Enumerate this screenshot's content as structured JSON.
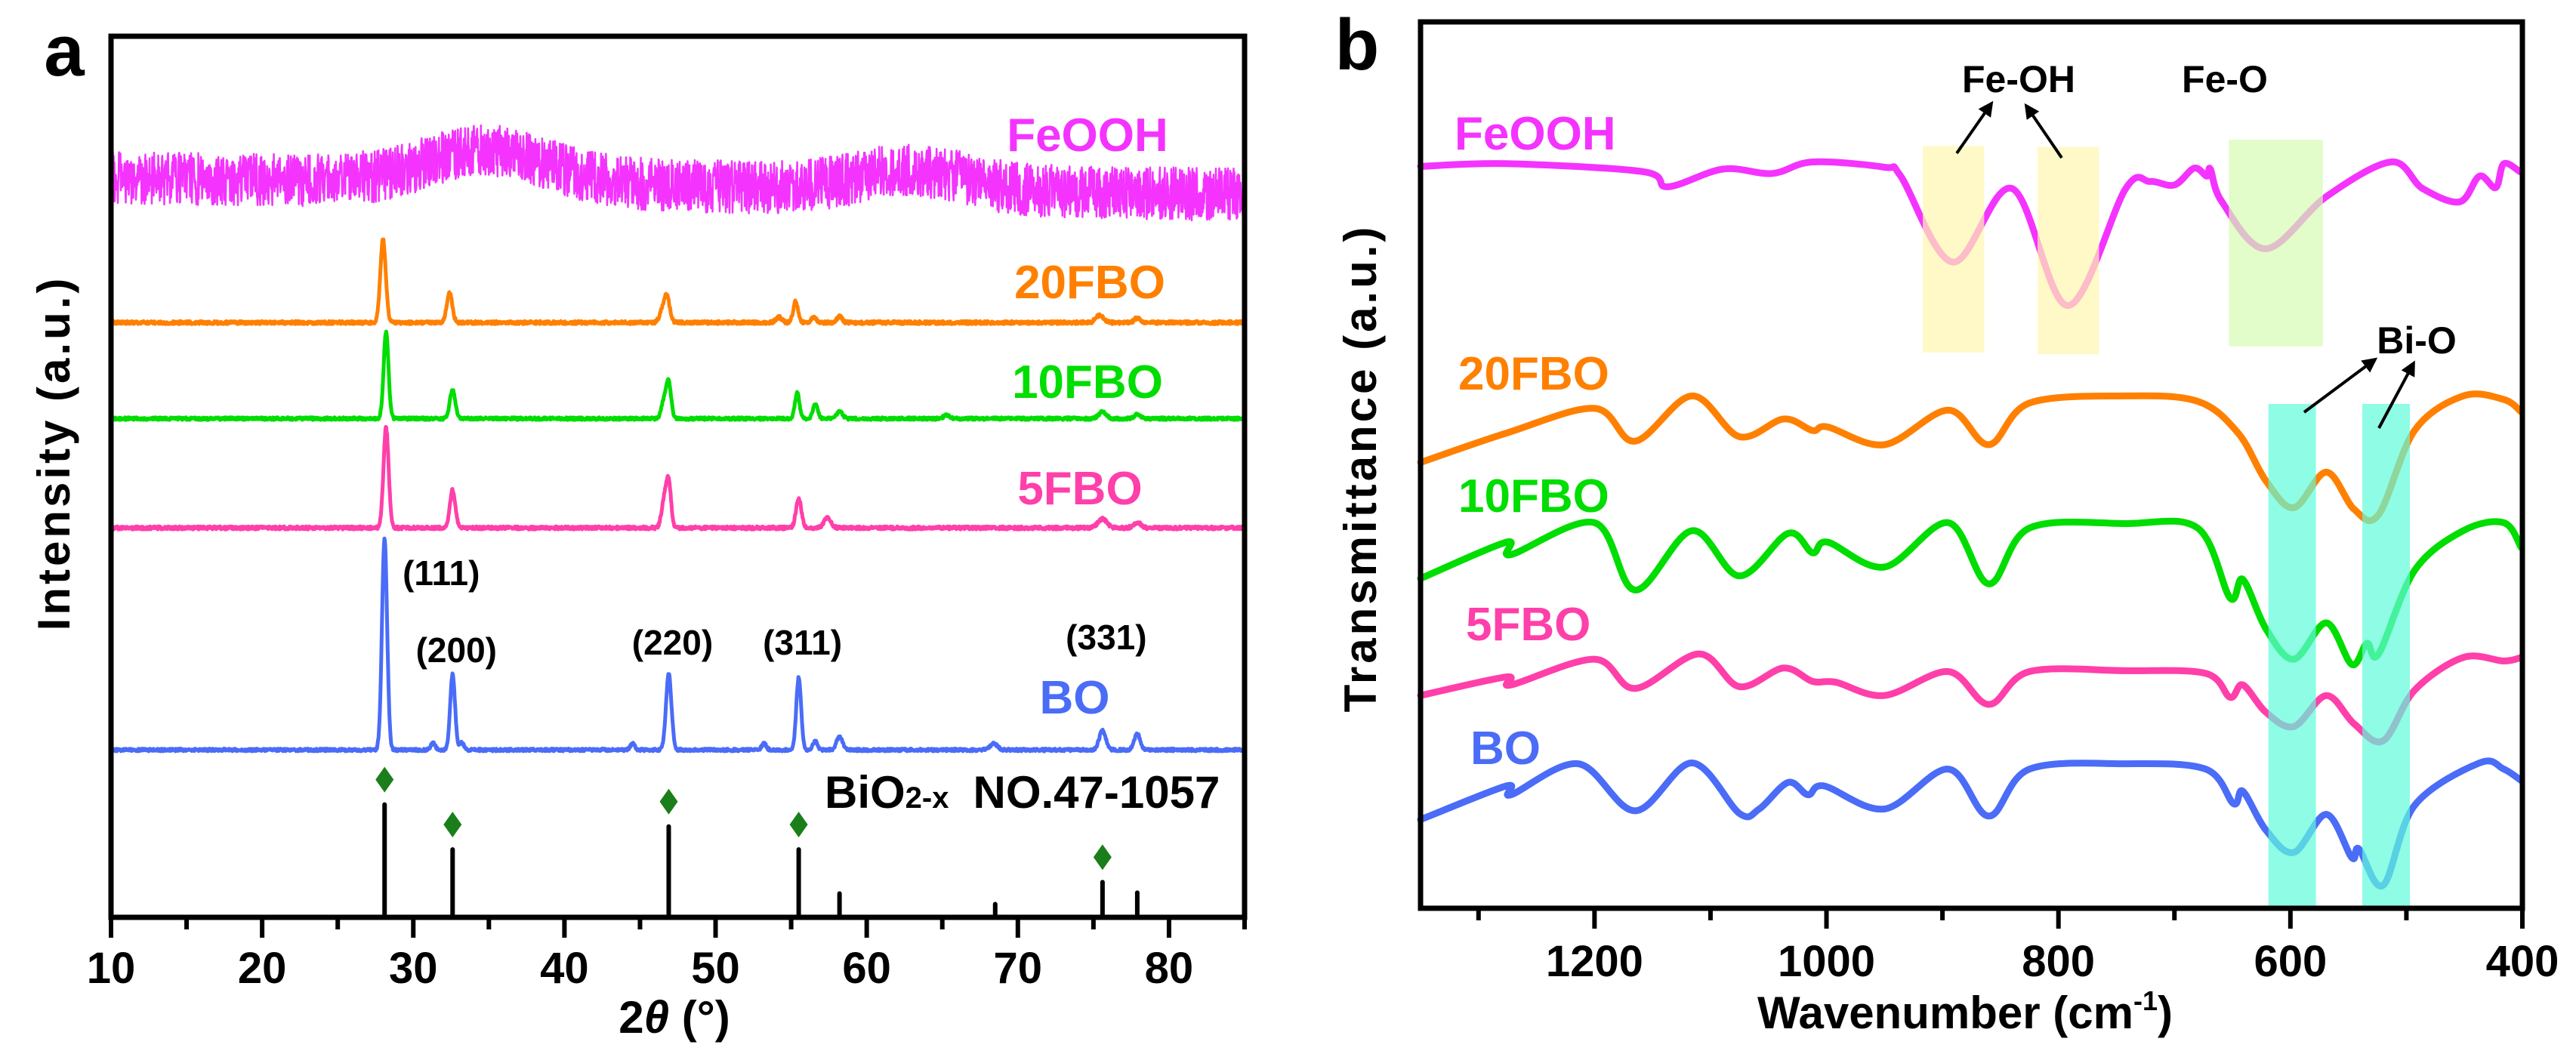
{
  "chart_data": [
    {
      "panel": "a",
      "type": "line",
      "title": "",
      "xlabel": {
        "prefix": "2",
        "symbol": "θ",
        "suffix": " (°)"
      },
      "ylabel": "Intensity (a.u.)",
      "xlim": [
        10,
        85
      ],
      "ylim": [
        0,
        100
      ],
      "xticks": [
        "10",
        "20",
        "30",
        "40",
        "50",
        "60",
        "70",
        "80"
      ],
      "xtick_values": [
        10,
        20,
        30,
        40,
        50,
        60,
        70,
        80
      ],
      "minor_xtick_values": [
        15,
        25,
        35,
        45,
        55,
        65,
        75,
        85
      ],
      "grid": false,
      "series": [
        {
          "name": "FeOOH",
          "color": "#f433ff",
          "baseline": [
            84.0,
            82.0
          ],
          "noise": 3.0,
          "seed": 7,
          "peaks": [
            [
              35,
              3.7,
              4.0
            ],
            [
              63,
              2.2,
              3.5
            ]
          ]
        },
        {
          "name": "20FBO",
          "color": "#ff8000",
          "baseline": [
            67.5,
            67.5
          ],
          "noise": 0.35,
          "seed": 11,
          "peaks": [
            [
              28.0,
              9.4,
              0.18
            ],
            [
              32.4,
              3.4,
              0.18
            ],
            [
              46.5,
              1.4,
              0.2
            ],
            [
              46.8,
              2.6,
              0.18
            ],
            [
              54.2,
              0.6,
              0.2
            ],
            [
              55.3,
              2.4,
              0.16
            ],
            [
              56.5,
              0.6,
              0.18
            ],
            [
              58.2,
              0.7,
              0.18
            ],
            [
              75.4,
              0.8,
              0.25
            ],
            [
              77.9,
              0.5,
              0.2
            ]
          ]
        },
        {
          "name": "10FBO",
          "color": "#00dd00",
          "baseline": [
            56.6,
            56.6
          ],
          "noise": 0.3,
          "seed": 13,
          "peaks": [
            [
              28.2,
              9.8,
              0.16
            ],
            [
              32.6,
              3.3,
              0.18
            ],
            [
              46.6,
              2.0,
              0.18
            ],
            [
              46.9,
              3.9,
              0.16
            ],
            [
              55.4,
              2.9,
              0.15
            ],
            [
              56.6,
              1.6,
              0.16
            ],
            [
              58.2,
              0.8,
              0.2
            ],
            [
              65.3,
              0.4,
              0.2
            ],
            [
              75.6,
              0.8,
              0.25
            ],
            [
              77.9,
              0.5,
              0.2
            ]
          ]
        },
        {
          "name": "5FBO",
          "color": "#ff3faa",
          "baseline": [
            44.2,
            44.2
          ],
          "noise": 0.35,
          "seed": 17,
          "peaks": [
            [
              28.2,
              11.4,
              0.17
            ],
            [
              32.6,
              4.3,
              0.18
            ],
            [
              46.6,
              3.0,
              0.18
            ],
            [
              46.9,
              4.9,
              0.16
            ],
            [
              55.5,
              3.3,
              0.18
            ],
            [
              57.4,
              1.2,
              0.22
            ],
            [
              75.6,
              1.0,
              0.3
            ],
            [
              77.9,
              0.6,
              0.25
            ]
          ]
        },
        {
          "name": "BO",
          "color": "#4a6cf7",
          "baseline": [
            19.0,
            19.0
          ],
          "noise": 0.3,
          "seed": 19,
          "peaks": [
            [
              28.1,
              24.0,
              0.17
            ],
            [
              31.3,
              0.8,
              0.15
            ],
            [
              32.6,
              8.6,
              0.16
            ],
            [
              33.2,
              0.8,
              0.15
            ],
            [
              44.5,
              0.7,
              0.15
            ],
            [
              46.9,
              8.6,
              0.18
            ],
            [
              53.2,
              0.7,
              0.15
            ],
            [
              55.5,
              8.2,
              0.16
            ],
            [
              56.6,
              1.0,
              0.15
            ],
            [
              58.2,
              1.5,
              0.2
            ],
            [
              68.4,
              0.7,
              0.25
            ],
            [
              75.6,
              2.2,
              0.22
            ],
            [
              77.9,
              1.8,
              0.2
            ]
          ]
        }
      ],
      "hkl_labels": [
        {
          "label": "(111)",
          "two_theta": 28.1
        },
        {
          "label": "(200)",
          "two_theta": 32.6
        },
        {
          "label": "(220)",
          "two_theta": 46.9
        },
        {
          "label": "(311)",
          "two_theta": 55.5
        },
        {
          "label": "(331)",
          "two_theta": 75.6
        }
      ],
      "reference": {
        "compound": "BiO",
        "subscript": "2-x",
        "card": "NO.47-1057",
        "line_color": "#000000",
        "marker_color": "#1a7f1a",
        "lines": [
          [
            28.1,
            12.8
          ],
          [
            32.6,
            7.7
          ],
          [
            46.9,
            10.3
          ],
          [
            55.5,
            7.7
          ],
          [
            58.2,
            2.7
          ],
          [
            68.5,
            1.5
          ],
          [
            75.6,
            4.0
          ],
          [
            77.9,
            2.8
          ]
        ],
        "marked": [
          28.1,
          32.6,
          46.9,
          55.5,
          75.6
        ]
      }
    },
    {
      "panel": "b",
      "type": "line",
      "title": "",
      "xlabel": {
        "text": "Wavenumber (cm",
        "superscript": "-1",
        "suffix": ")"
      },
      "ylabel": "Transmittance (a.u.)",
      "xlim": [
        1350,
        400
      ],
      "ylim": [
        0,
        100
      ],
      "xticks": [
        "1200",
        "1000",
        "800",
        "600",
        "400"
      ],
      "xtick_values": [
        1200,
        1000,
        800,
        600,
        400
      ],
      "minor_xtick_values": [
        1300,
        1100,
        900,
        700,
        500
      ],
      "grid": false,
      "series": [
        {
          "name": "FeOOH",
          "color": "#f433ff",
          "points": [
            [
              1350,
              83.7
            ],
            [
              1276,
              84.0
            ],
            [
              1158,
              83.1
            ],
            [
              1137,
              81.4
            ],
            [
              1089,
              83.4
            ],
            [
              1047,
              82.9
            ],
            [
              1012,
              84.2
            ],
            [
              950,
              83.6
            ],
            [
              936,
              82.6
            ],
            [
              891,
              72.9
            ],
            [
              840,
              81.2
            ],
            [
              792,
              68.0
            ],
            [
              742,
              81.2
            ],
            [
              721,
              82.0
            ],
            [
              700,
              81.6
            ],
            [
              683,
              83.5
            ],
            [
              672,
              82.6
            ],
            [
              669,
              83.4
            ],
            [
              659,
              79.7
            ],
            [
              621,
              74.4
            ],
            [
              569,
              80.3
            ],
            [
              513,
              84.2
            ],
            [
              486,
              81.2
            ],
            [
              454,
              79.7
            ],
            [
              437,
              82.6
            ],
            [
              423,
              81.3
            ],
            [
              416,
              84.0
            ],
            [
              402,
              83.1
            ]
          ]
        },
        {
          "name": "20FBO",
          "color": "#ff8000",
          "points": [
            [
              1350,
              50.3
            ],
            [
              1276,
              53.6
            ],
            [
              1200,
              56.4
            ],
            [
              1165,
              52.7
            ],
            [
              1116,
              57.8
            ],
            [
              1075,
              53.2
            ],
            [
              1037,
              55.2
            ],
            [
              1012,
              53.9
            ],
            [
              999,
              54.3
            ],
            [
              950,
              52.3
            ],
            [
              895,
              56.2
            ],
            [
              860,
              52.3
            ],
            [
              825,
              57.0
            ],
            [
              742,
              57.8
            ],
            [
              680,
              57.2
            ],
            [
              645,
              53.6
            ],
            [
              621,
              48.2
            ],
            [
              597,
              45.2
            ],
            [
              569,
              49.2
            ],
            [
              545,
              45.0
            ],
            [
              524,
              44.4
            ],
            [
              493,
              53.9
            ],
            [
              451,
              57.8
            ],
            [
              416,
              57.4
            ],
            [
              401,
              56.0
            ]
          ]
        },
        {
          "name": "10FBO",
          "color": "#00dd00",
          "points": [
            [
              1350,
              37.2
            ],
            [
              1276,
              41.3
            ],
            [
              1272,
              39.9
            ],
            [
              1200,
              43.5
            ],
            [
              1165,
              35.9
            ],
            [
              1116,
              42.6
            ],
            [
              1075,
              37.5
            ],
            [
              1033,
              42.3
            ],
            [
              1012,
              40.1
            ],
            [
              999,
              41.3
            ],
            [
              950,
              38.5
            ],
            [
              895,
              43.5
            ],
            [
              860,
              36.6
            ],
            [
              825,
              42.9
            ],
            [
              742,
              43.4
            ],
            [
              680,
              42.9
            ],
            [
              652,
              35.0
            ],
            [
              641,
              37.1
            ],
            [
              621,
              31.5
            ],
            [
              597,
              28.1
            ],
            [
              569,
              32.2
            ],
            [
              547,
              27.5
            ],
            [
              534,
              29.9
            ],
            [
              524,
              28.7
            ],
            [
              493,
              38.1
            ],
            [
              451,
              42.6
            ],
            [
              416,
              43.5
            ],
            [
              401,
              40.7
            ]
          ]
        },
        {
          "name": "5FBO",
          "color": "#ff3faa",
          "points": [
            [
              1350,
              24.0
            ],
            [
              1276,
              26.1
            ],
            [
              1272,
              25.2
            ],
            [
              1200,
              28.1
            ],
            [
              1165,
              24.8
            ],
            [
              1110,
              28.7
            ],
            [
              1075,
              25.0
            ],
            [
              1037,
              27.1
            ],
            [
              1012,
              25.6
            ],
            [
              992,
              25.5
            ],
            [
              950,
              24.0
            ],
            [
              895,
              26.7
            ],
            [
              860,
              23.0
            ],
            [
              825,
              26.7
            ],
            [
              742,
              26.8
            ],
            [
              673,
              26.5
            ],
            [
              652,
              23.8
            ],
            [
              641,
              25.2
            ],
            [
              621,
              22.1
            ],
            [
              597,
              20.5
            ],
            [
              569,
              24.0
            ],
            [
              545,
              20.8
            ],
            [
              520,
              18.9
            ],
            [
              493,
              24.6
            ],
            [
              451,
              28.3
            ],
            [
              416,
              27.9
            ],
            [
              401,
              28.3
            ]
          ]
        },
        {
          "name": "BO",
          "color": "#4a6cf7",
          "points": [
            [
              1350,
              10.0
            ],
            [
              1276,
              13.8
            ],
            [
              1272,
              12.8
            ],
            [
              1214,
              16.3
            ],
            [
              1165,
              11.0
            ],
            [
              1116,
              16.4
            ],
            [
              1075,
              10.7
            ],
            [
              1058,
              11.2
            ],
            [
              1033,
              14.2
            ],
            [
              1016,
              12.8
            ],
            [
              1002,
              13.8
            ],
            [
              950,
              11.2
            ],
            [
              895,
              15.7
            ],
            [
              860,
              10.4
            ],
            [
              825,
              15.7
            ],
            [
              742,
              16.3
            ],
            [
              673,
              15.7
            ],
            [
              649,
              11.8
            ],
            [
              641,
              13.2
            ],
            [
              621,
              8.8
            ],
            [
              597,
              6.3
            ],
            [
              569,
              10.6
            ],
            [
              547,
              5.7
            ],
            [
              541,
              6.7
            ],
            [
              520,
              2.6
            ],
            [
              493,
              11.6
            ],
            [
              437,
              16.4
            ],
            [
              416,
              15.7
            ],
            [
              401,
              14.4
            ]
          ]
        }
      ],
      "bands": [
        {
          "label": "Fe-OH",
          "from": 917,
          "to": 864,
          "ymin": 62.7,
          "ymax": 86.0,
          "color": "#fff6b0"
        },
        {
          "label": "Fe-OH",
          "from": 818,
          "to": 765,
          "ymin": 62.5,
          "ymax": 85.9,
          "color": "#fff6b0"
        },
        {
          "label": "Fe-O",
          "from": 653,
          "to": 572,
          "ymin": 63.4,
          "ymax": 86.7,
          "color": "#d6fbb4"
        },
        {
          "label": "Bi-O",
          "from": 619,
          "to": 578,
          "ymin": 0,
          "ymax": 56.9,
          "color": "#5ffbdc"
        },
        {
          "label": "Bi-O",
          "from": 538,
          "to": 497,
          "ymin": 0,
          "ymax": 56.9,
          "color": "#5ffbdc"
        }
      ],
      "annotations": [
        "Fe-OH",
        "Fe-O",
        "Bi-O"
      ]
    }
  ],
  "panel_labels": [
    "a",
    "b"
  ]
}
